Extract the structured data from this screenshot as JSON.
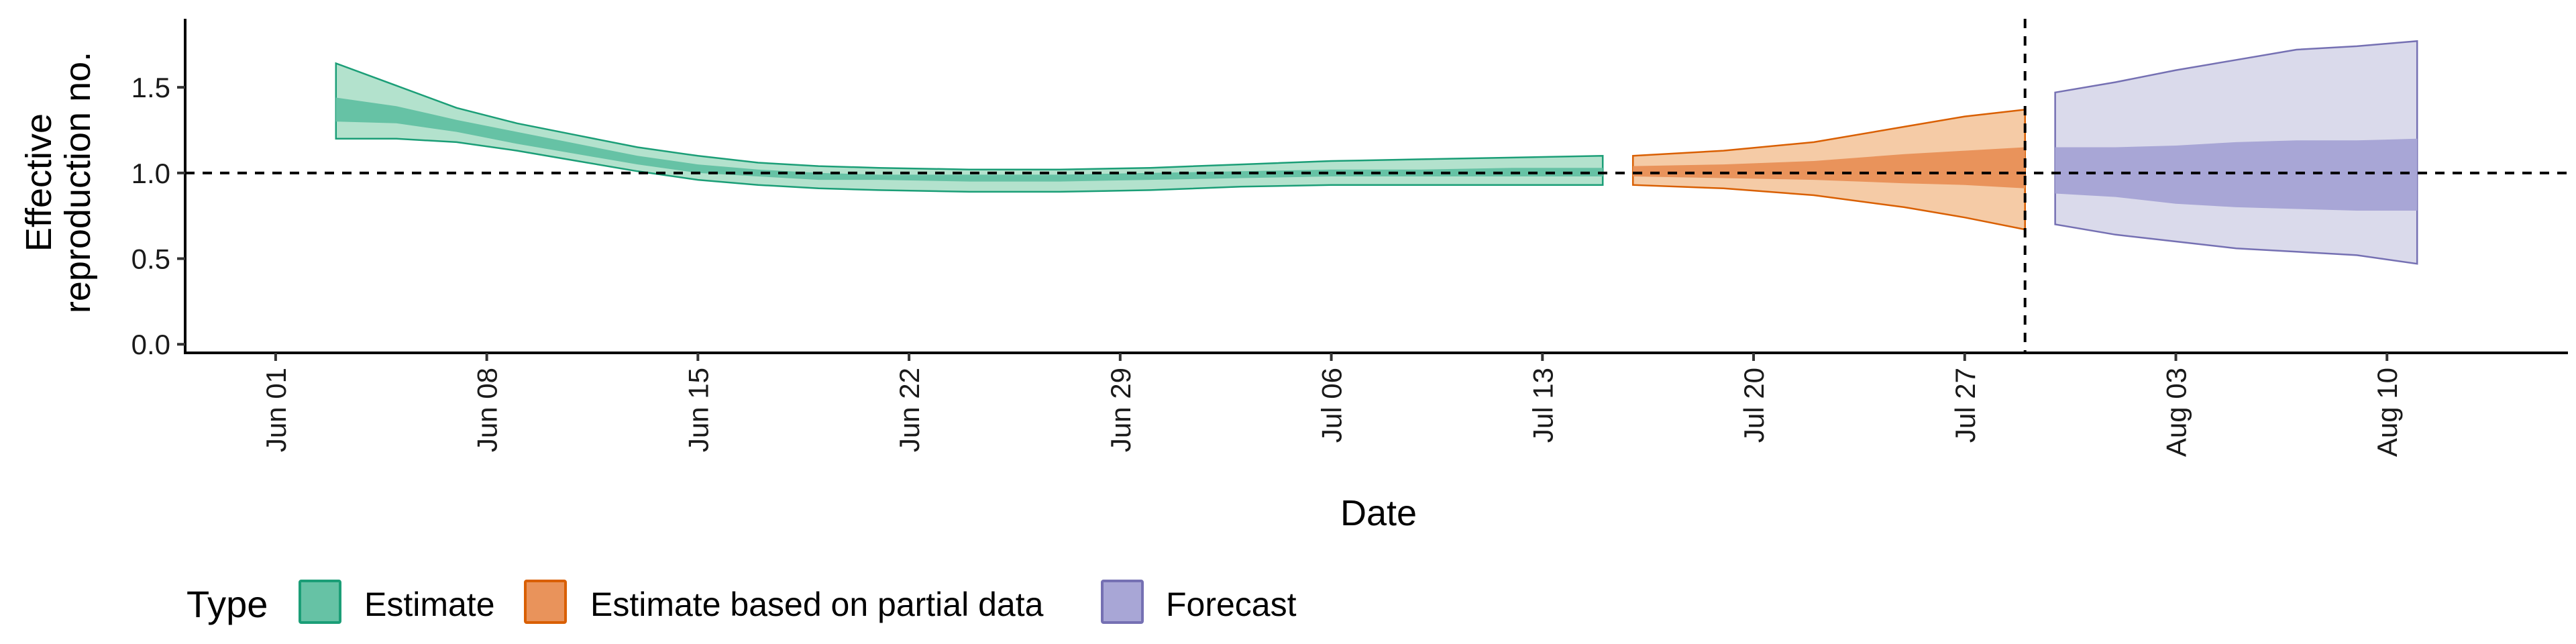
{
  "chart_data": {
    "type": "area",
    "xlabel": "Date",
    "ylabel_lines": [
      "Effective",
      "reproduction no."
    ],
    "xlim": [
      "2021-05-29",
      "2021-08-16"
    ],
    "ylim": [
      -0.05,
      1.9
    ],
    "y_ticks": [
      0.0,
      0.5,
      1.0,
      1.5
    ],
    "y_tick_labels": [
      "0.0",
      "0.5",
      "1.0",
      "1.5"
    ],
    "x_ticks": [
      {
        "date": "2021-06-01",
        "label": "Jun 01"
      },
      {
        "date": "2021-06-08",
        "label": "Jun 08"
      },
      {
        "date": "2021-06-15",
        "label": "Jun 15"
      },
      {
        "date": "2021-06-22",
        "label": "Jun 22"
      },
      {
        "date": "2021-06-29",
        "label": "Jun 29"
      },
      {
        "date": "2021-07-06",
        "label": "Jul 06"
      },
      {
        "date": "2021-07-13",
        "label": "Jul 13"
      },
      {
        "date": "2021-07-20",
        "label": "Jul 20"
      },
      {
        "date": "2021-07-27",
        "label": "Jul 27"
      },
      {
        "date": "2021-08-03",
        "label": "Aug 03"
      },
      {
        "date": "2021-08-10",
        "label": "Aug 10"
      }
    ],
    "reference_hline": 1.0,
    "vline_date": "2021-07-29",
    "grid": false,
    "series": [
      {
        "name": "Estimate",
        "outer_color": "#b3e2cd",
        "inner_color": "#66c2a5",
        "line_color": "#1b9e77",
        "points": [
          {
            "x": "2021-06-03",
            "lo90": 1.2,
            "hi90": 1.64,
            "lo50": 1.3,
            "hi50": 1.44
          },
          {
            "x": "2021-06-05",
            "lo90": 1.2,
            "hi90": 1.51,
            "lo50": 1.29,
            "hi50": 1.39
          },
          {
            "x": "2021-06-07",
            "lo90": 1.18,
            "hi90": 1.38,
            "lo50": 1.24,
            "hi50": 1.31
          },
          {
            "x": "2021-06-09",
            "lo90": 1.13,
            "hi90": 1.29,
            "lo50": 1.17,
            "hi50": 1.24
          },
          {
            "x": "2021-06-11",
            "lo90": 1.07,
            "hi90": 1.22,
            "lo50": 1.11,
            "hi50": 1.17
          },
          {
            "x": "2021-06-13",
            "lo90": 1.01,
            "hi90": 1.15,
            "lo50": 1.05,
            "hi50": 1.1
          },
          {
            "x": "2021-06-15",
            "lo90": 0.96,
            "hi90": 1.1,
            "lo50": 1.0,
            "hi50": 1.05
          },
          {
            "x": "2021-06-17",
            "lo90": 0.93,
            "hi90": 1.06,
            "lo50": 0.98,
            "hi50": 1.02
          },
          {
            "x": "2021-06-19",
            "lo90": 0.91,
            "hi90": 1.04,
            "lo50": 0.96,
            "hi50": 1.0
          },
          {
            "x": "2021-06-21",
            "lo90": 0.9,
            "hi90": 1.03,
            "lo50": 0.96,
            "hi50": 0.99
          },
          {
            "x": "2021-06-24",
            "lo90": 0.89,
            "hi90": 1.02,
            "lo50": 0.95,
            "hi50": 0.99
          },
          {
            "x": "2021-06-27",
            "lo90": 0.89,
            "hi90": 1.02,
            "lo50": 0.95,
            "hi50": 0.99
          },
          {
            "x": "2021-06-30",
            "lo90": 0.9,
            "hi90": 1.03,
            "lo50": 0.96,
            "hi50": 1.0
          },
          {
            "x": "2021-07-03",
            "lo90": 0.92,
            "hi90": 1.05,
            "lo50": 0.97,
            "hi50": 1.01
          },
          {
            "x": "2021-07-06",
            "lo90": 0.93,
            "hi90": 1.07,
            "lo50": 0.98,
            "hi50": 1.02
          },
          {
            "x": "2021-07-09",
            "lo90": 0.93,
            "hi90": 1.08,
            "lo50": 0.98,
            "hi50": 1.02
          },
          {
            "x": "2021-07-12",
            "lo90": 0.93,
            "hi90": 1.09,
            "lo50": 0.98,
            "hi50": 1.03
          },
          {
            "x": "2021-07-15",
            "lo90": 0.93,
            "hi90": 1.1,
            "lo50": 0.98,
            "hi50": 1.03
          }
        ]
      },
      {
        "name": "Estimate based on partial data",
        "outer_color": "#f5cba6",
        "inner_color": "#e9935b",
        "line_color": "#d95f02",
        "points": [
          {
            "x": "2021-07-16",
            "lo90": 0.93,
            "hi90": 1.1,
            "lo50": 0.98,
            "hi50": 1.04
          },
          {
            "x": "2021-07-19",
            "lo90": 0.91,
            "hi90": 1.13,
            "lo50": 0.97,
            "hi50": 1.05
          },
          {
            "x": "2021-07-22",
            "lo90": 0.87,
            "hi90": 1.18,
            "lo50": 0.96,
            "hi50": 1.07
          },
          {
            "x": "2021-07-25",
            "lo90": 0.8,
            "hi90": 1.27,
            "lo50": 0.94,
            "hi50": 1.11
          },
          {
            "x": "2021-07-27",
            "lo90": 0.74,
            "hi90": 1.33,
            "lo50": 0.93,
            "hi50": 1.13
          },
          {
            "x": "2021-07-29",
            "lo90": 0.67,
            "hi90": 1.37,
            "lo50": 0.91,
            "hi50": 1.15
          }
        ]
      },
      {
        "name": "Forecast",
        "outer_color": "#dadaeb",
        "inner_color": "#a8a6d6",
        "line_color": "#7570b3",
        "points": [
          {
            "x": "2021-07-30",
            "lo90": 0.7,
            "hi90": 1.47,
            "lo50": 0.88,
            "hi50": 1.15
          },
          {
            "x": "2021-08-01",
            "lo90": 0.64,
            "hi90": 1.53,
            "lo50": 0.86,
            "hi50": 1.15
          },
          {
            "x": "2021-08-03",
            "lo90": 0.6,
            "hi90": 1.6,
            "lo50": 0.82,
            "hi50": 1.16
          },
          {
            "x": "2021-08-05",
            "lo90": 0.56,
            "hi90": 1.66,
            "lo50": 0.8,
            "hi50": 1.18
          },
          {
            "x": "2021-08-07",
            "lo90": 0.54,
            "hi90": 1.72,
            "lo50": 0.79,
            "hi50": 1.19
          },
          {
            "x": "2021-08-09",
            "lo90": 0.52,
            "hi90": 1.74,
            "lo50": 0.78,
            "hi50": 1.19
          },
          {
            "x": "2021-08-11",
            "lo90": 0.47,
            "hi90": 1.77,
            "lo50": 0.78,
            "hi50": 1.2
          }
        ]
      }
    ],
    "legend": {
      "title": "Type",
      "position": "bottom-left",
      "entries": [
        "Estimate",
        "Estimate based on partial data",
        "Forecast"
      ]
    }
  }
}
